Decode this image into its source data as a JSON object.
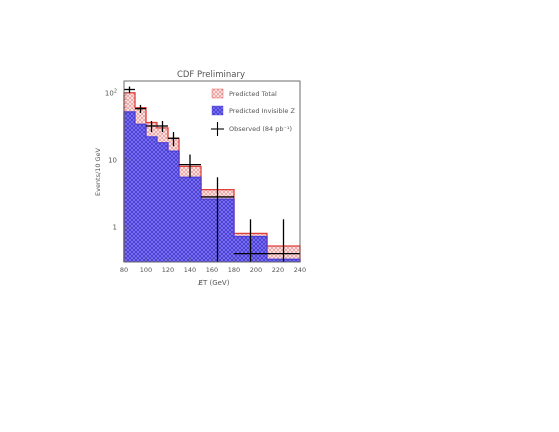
{
  "chart_data": {
    "type": "histogram",
    "title": "CDF Preliminary",
    "xlabel": "E̸T (GeV)",
    "ylabel": "Events/10 GeV",
    "y_scale": "log",
    "xlim": [
      80,
      240
    ],
    "ylim": [
      0.3,
      150
    ],
    "x_ticks": [
      "80",
      "100",
      "120",
      "140",
      "160",
      "180",
      "200",
      "220",
      "240"
    ],
    "y_ticks": [
      {
        "label": "10",
        "sup": "2",
        "value": 100
      },
      {
        "label": "10",
        "sup": "",
        "value": 10
      },
      {
        "label": "1",
        "sup": "",
        "value": 1
      }
    ],
    "bins": [
      [
        80,
        90
      ],
      [
        90,
        100
      ],
      [
        100,
        110
      ],
      [
        110,
        120
      ],
      [
        120,
        130
      ],
      [
        130,
        150
      ],
      [
        150,
        180
      ],
      [
        180,
        210
      ],
      [
        210,
        240
      ]
    ],
    "series": [
      {
        "name": "Predicted Total",
        "color": "#e0403a",
        "values": [
          100,
          60,
          36,
          30,
          21,
          8.0,
          3.6,
          0.8,
          0.52
        ]
      },
      {
        "name": "Predicted Invisible Z",
        "color": "#4a3fd8",
        "values": [
          52,
          34,
          22,
          18,
          13.5,
          5.5,
          2.6,
          0.72,
          0.33
        ]
      }
    ],
    "observed": {
      "name": "Observed (84 pb⁻¹)",
      "points": [
        {
          "x": 85,
          "y": 112,
          "xerr": 5,
          "ylo": 100,
          "yhi": 124
        },
        {
          "x": 95,
          "y": 58,
          "xerr": 5,
          "ylo": 50,
          "yhi": 66
        },
        {
          "x": 105,
          "y": 32,
          "xerr": 5,
          "ylo": 26,
          "yhi": 38
        },
        {
          "x": 115,
          "y": 32,
          "xerr": 5,
          "ylo": 26,
          "yhi": 38
        },
        {
          "x": 125,
          "y": 21,
          "xerr": 5,
          "ylo": 16,
          "yhi": 26
        },
        {
          "x": 140,
          "y": 8.5,
          "xerr": 10,
          "ylo": 5.5,
          "yhi": 12
        },
        {
          "x": 165,
          "y": 2.8,
          "xerr": 15,
          "ylo": 0.3,
          "yhi": 5.5
        },
        {
          "x": 195,
          "y": 0.4,
          "xerr": 15,
          "ylo": 0.3,
          "yhi": 1.3
        },
        {
          "x": 225,
          "y": 0.4,
          "xerr": 15,
          "ylo": 0.3,
          "yhi": 1.3
        }
      ]
    },
    "legend": {
      "position": "top-right",
      "entries": [
        "Predicted Total",
        "Predicted Invisible Z",
        "Observed (84 pb⁻¹)"
      ]
    },
    "grid": false
  }
}
